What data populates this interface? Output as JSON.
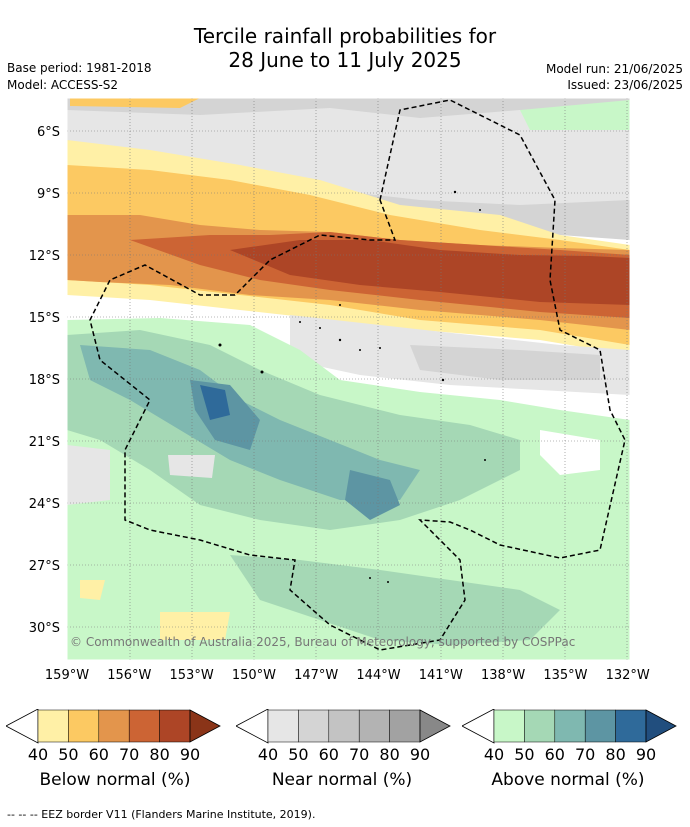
{
  "header": {
    "title_line1": "Tercile rainfall probabilities for",
    "title_line2": "28 June to 11 July 2025",
    "base_period": "Base period: 1981-2018",
    "model": "Model: ACCESS-S2",
    "model_run": "Model run: 21/06/2025",
    "issued": "Issued: 23/06/2025"
  },
  "map": {
    "lat_labels": [
      "6°S",
      "9°S",
      "12°S",
      "15°S",
      "18°S",
      "21°S",
      "24°S",
      "27°S",
      "30°S"
    ],
    "lon_labels": [
      "159°W",
      "156°W",
      "153°W",
      "150°W",
      "147°W",
      "144°W",
      "141°W",
      "138°W",
      "135°W",
      "132°W"
    ],
    "copyright": "© Commonwealth of Australia 2025, Bureau of Meteorology, supported by COSPPac"
  },
  "legend": {
    "ticks": [
      "40",
      "50",
      "60",
      "70",
      "80",
      "90"
    ],
    "below": {
      "title": "Below normal (%)",
      "colors": [
        "#fff0a6",
        "#fcc962",
        "#e3954c",
        "#cc6434",
        "#ad4526",
        "#8a3418"
      ]
    },
    "near": {
      "title": "Near normal (%)",
      "colors": [
        "#e6e6e6",
        "#d4d4d4",
        "#c3c3c3",
        "#b3b3b3",
        "#a2a2a2",
        "#888888"
      ]
    },
    "above": {
      "title": "Above normal (%)",
      "colors": [
        "#c8f7c8",
        "#a5d8b5",
        "#7fb8b0",
        "#5d95a3",
        "#2f6a9a",
        "#214e7e"
      ]
    }
  },
  "footer": "--  --  -- EEZ border V11 (Flanders Marine Institute, 2019)."
}
